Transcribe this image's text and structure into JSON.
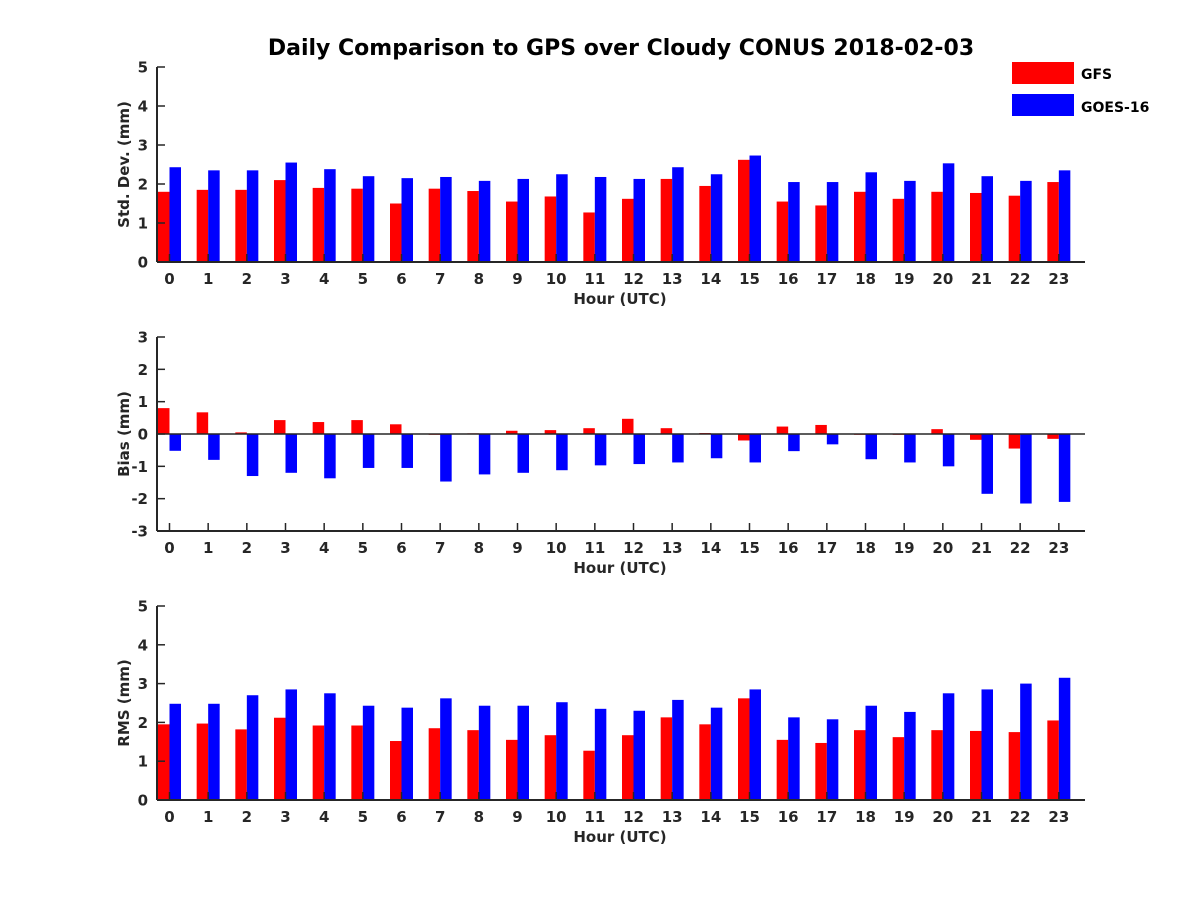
{
  "title": "Daily Comparison to GPS over Cloudy CONUS 2018-02-03",
  "legend": [
    {
      "label": "GFS",
      "color": "#ff0000"
    },
    {
      "label": "GOES-16",
      "color": "#0000ff"
    }
  ],
  "chart_data": [
    {
      "type": "bar",
      "ylabel": "Std. Dev. (mm)",
      "xlabel": "Hour (UTC)",
      "ylim": [
        0,
        5
      ],
      "yticks": [
        "0",
        "1",
        "2",
        "3",
        "4",
        "5"
      ],
      "categories": [
        "0",
        "1",
        "2",
        "3",
        "4",
        "5",
        "6",
        "7",
        "8",
        "9",
        "10",
        "11",
        "12",
        "13",
        "14",
        "15",
        "16",
        "17",
        "18",
        "19",
        "20",
        "21",
        "22",
        "23"
      ],
      "series": [
        {
          "name": "GFS",
          "color": "#ff0000",
          "values": [
            1.8,
            1.85,
            1.85,
            2.1,
            1.9,
            1.88,
            1.5,
            1.88,
            1.82,
            1.55,
            1.68,
            1.27,
            1.62,
            2.13,
            1.95,
            2.62,
            1.55,
            1.45,
            1.8,
            1.62,
            1.8,
            1.77,
            1.7,
            2.05
          ]
        },
        {
          "name": "GOES-16",
          "color": "#0000ff",
          "values": [
            2.43,
            2.35,
            2.35,
            2.55,
            2.38,
            2.2,
            2.15,
            2.18,
            2.08,
            2.13,
            2.25,
            2.18,
            2.13,
            2.43,
            2.25,
            2.73,
            2.05,
            2.05,
            2.3,
            2.08,
            2.53,
            2.2,
            2.08,
            2.35
          ]
        }
      ]
    },
    {
      "type": "bar",
      "ylabel": "Bias (mm)",
      "xlabel": "Hour (UTC)",
      "ylim": [
        -3,
        3
      ],
      "yticks": [
        "-3",
        "-2",
        "-1",
        "0",
        "1",
        "2",
        "3"
      ],
      "categories": [
        "0",
        "1",
        "2",
        "3",
        "4",
        "5",
        "6",
        "7",
        "8",
        "9",
        "10",
        "11",
        "12",
        "13",
        "14",
        "15",
        "16",
        "17",
        "18",
        "19",
        "20",
        "21",
        "22",
        "23"
      ],
      "series": [
        {
          "name": "GFS",
          "color": "#ff0000",
          "values": [
            0.8,
            0.67,
            0.05,
            0.43,
            0.37,
            0.43,
            0.3,
            0.0,
            0.02,
            0.1,
            0.12,
            0.18,
            0.47,
            0.18,
            0.03,
            -0.2,
            0.23,
            0.28,
            0.0,
            0.0,
            0.15,
            -0.18,
            -0.45,
            -0.15
          ]
        },
        {
          "name": "GOES-16",
          "color": "#0000ff",
          "values": [
            -0.52,
            -0.8,
            -1.3,
            -1.2,
            -1.37,
            -1.05,
            -1.05,
            -1.47,
            -1.25,
            -1.2,
            -1.12,
            -0.97,
            -0.93,
            -0.88,
            -0.75,
            -0.88,
            -0.53,
            -0.32,
            -0.78,
            -0.88,
            -1.0,
            -1.85,
            -2.15,
            -2.1
          ]
        }
      ]
    },
    {
      "type": "bar",
      "ylabel": "RMS (mm)",
      "xlabel": "Hour (UTC)",
      "ylim": [
        0,
        5
      ],
      "yticks": [
        "0",
        "1",
        "2",
        "3",
        "4",
        "5"
      ],
      "categories": [
        "0",
        "1",
        "2",
        "3",
        "4",
        "5",
        "6",
        "7",
        "8",
        "9",
        "10",
        "11",
        "12",
        "13",
        "14",
        "15",
        "16",
        "17",
        "18",
        "19",
        "20",
        "21",
        "22",
        "23"
      ],
      "series": [
        {
          "name": "GFS",
          "color": "#ff0000",
          "values": [
            1.95,
            1.97,
            1.82,
            2.12,
            1.92,
            1.92,
            1.52,
            1.85,
            1.8,
            1.55,
            1.67,
            1.27,
            1.67,
            2.13,
            1.95,
            2.62,
            1.55,
            1.47,
            1.8,
            1.62,
            1.8,
            1.78,
            1.75,
            2.05
          ]
        },
        {
          "name": "GOES-16",
          "color": "#0000ff",
          "values": [
            2.48,
            2.48,
            2.7,
            2.85,
            2.75,
            2.43,
            2.38,
            2.62,
            2.43,
            2.43,
            2.52,
            2.35,
            2.3,
            2.58,
            2.38,
            2.85,
            2.13,
            2.08,
            2.43,
            2.27,
            2.75,
            2.85,
            3.0,
            3.15
          ]
        }
      ]
    }
  ]
}
